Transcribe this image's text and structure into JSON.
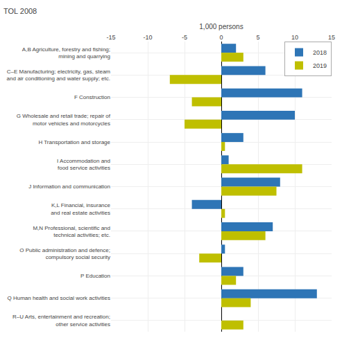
{
  "chart_data": {
    "type": "bar",
    "orientation": "horizontal",
    "title": "TOL 2008",
    "xlabel": "1,000 persons",
    "categories": [
      "A,B Agriculture, forestry and fishing;\nmining and quarrying",
      "C–E Manufacturing; electricity, gas, steam\nand air conditioning and water supply; etc.",
      "F Construction",
      "G Wholesale and retail trade; repair of\nmotor vehicles and motorcycles",
      "H Transportation and storage",
      "I Accommodation and\nfood service activities",
      "J Information and communication",
      "K,L Financial, insurance\nand real estate activities",
      "M,N Professional, scientific and\ntechnical activities; etc.",
      "O Public administration and defence;\ncompulsory social security",
      "P Education",
      "Q Human health and social work activities",
      "R–U Arts, entertainment and recreation;\nother service activities"
    ],
    "series": [
      {
        "name": "2018",
        "color": "#2E75B6",
        "values": [
          2.0,
          6.0,
          11.0,
          10.0,
          3.0,
          1.0,
          8.0,
          -4.0,
          7.0,
          0.5,
          3.0,
          13.0,
          0.0
        ]
      },
      {
        "name": "2019",
        "color": "#BFBF00",
        "values": [
          3.0,
          -7.0,
          -4.0,
          -5.0,
          0.5,
          11.0,
          7.5,
          0.5,
          6.0,
          -3.0,
          2.0,
          4.0,
          3.0
        ]
      }
    ],
    "xlim": [
      -15,
      15
    ],
    "xticks": [
      -15,
      -10,
      -5,
      0,
      5,
      10,
      15
    ],
    "grid": true,
    "legend": "upper right"
  }
}
